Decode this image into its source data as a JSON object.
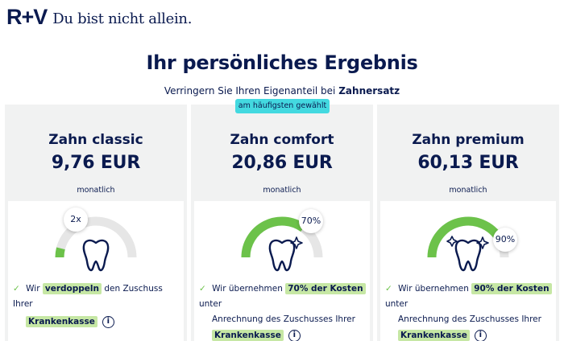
{
  "header": {
    "logo": "R+V",
    "slogan": "Du bist nicht allein."
  },
  "page": {
    "title": "Ihr persönliches Ergebnis",
    "subtitle_prefix": "Verringern Sie Ihren Eigenanteil bei",
    "subtitle_bold": "Zahnersatz"
  },
  "colors": {
    "navy": "#0a1a4f",
    "green": "#6cc24a",
    "gauge_track": "#e6e6e6",
    "badge": "#43d9e0",
    "card_bg": "#f1f2f2",
    "highlight": "#c6e7a4"
  },
  "plans": [
    {
      "name": "Zahn classic",
      "price": "9,76 EUR",
      "period": "monatlich",
      "badge": "",
      "gauge_label": "2x",
      "gauge_fraction": 0.08,
      "icon": "tooth-icon",
      "feature_prefix": "Wir",
      "feature_highlight": "verdoppeln",
      "feature_suffix": "den Zuschuss Ihrer",
      "feature_line2": "",
      "feature_tag": "Krankenkasse"
    },
    {
      "name": "Zahn comfort",
      "price": "20,86 EUR",
      "period": "monatlich",
      "badge": "am häufigsten gewählt",
      "gauge_label": "70%",
      "gauge_fraction": 0.7,
      "icon": "tooth-sparkle-icon",
      "feature_prefix": "Wir übernehmen",
      "feature_highlight": "70% der Kosten",
      "feature_suffix": "unter",
      "feature_line2": "Anrechnung des Zuschusses Ihrer",
      "feature_tag": "Krankenkasse"
    },
    {
      "name": "Zahn premium",
      "price": "60,13 EUR",
      "period": "monatlich",
      "badge": "",
      "gauge_label": "90%",
      "gauge_fraction": 0.9,
      "icon": "tooth-sparkle-icon",
      "feature_prefix": "Wir übernehmen",
      "feature_highlight": "90% der Kosten",
      "feature_suffix": "unter",
      "feature_line2": "Anrechnung des Zuschusses Ihrer",
      "feature_tag": "Krankenkasse"
    }
  ]
}
